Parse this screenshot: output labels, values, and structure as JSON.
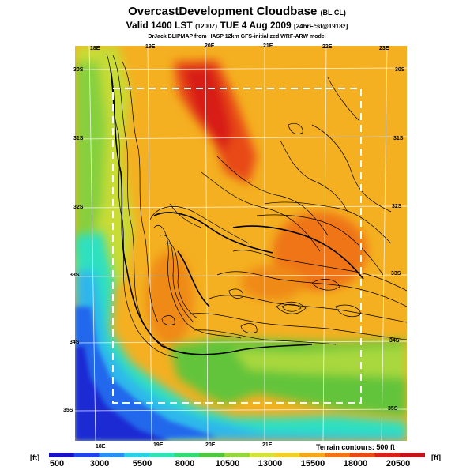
{
  "title": {
    "main": "OvercastDevelopment Cloudbase",
    "main_suffix": "(BL CL)",
    "valid": "Valid 1400 LST",
    "valid_z": "(1200Z)",
    "valid_date": "TUE 4 Aug 2009",
    "valid_fcst": "[24hrFcst@1918z]",
    "credit": "DrJack BLIPMAP from HASP 12km GFS-initialized WRF-ARW model"
  },
  "map_labels": {
    "top_lon": [
      "18E",
      "19E",
      "20E",
      "21E",
      "22E",
      "23E"
    ],
    "bottom_lon": [
      "18E",
      "19E",
      "20E",
      "21E"
    ],
    "left_lat": [
      "30S",
      "31S",
      "32S",
      "33S",
      "34S",
      "35S"
    ],
    "right_lat": [
      "30S",
      "31S",
      "32S",
      "33S",
      "34S",
      "35S"
    ]
  },
  "legend": {
    "unit_left": "[ft]",
    "unit_right": "[ft]",
    "terrain_note": "Terrain contours: 500 ft",
    "labels": [
      "500",
      "3000",
      "5500",
      "8000",
      "10500",
      "13000",
      "15500",
      "18000",
      "20500"
    ],
    "colors": [
      "#1a10c8",
      "#1f46ec",
      "#2a8ff2",
      "#2ad0e6",
      "#2fe3b4",
      "#35d977",
      "#4dc83c",
      "#95d63e",
      "#d4e33c",
      "#f2d028",
      "#f6a61c",
      "#ef7516",
      "#e84a16",
      "#d82218",
      "#c4121c"
    ]
  },
  "colors": {
    "ocean": "#1a3fe0",
    "coast": "#2fd9cc",
    "low": "#4dc83c",
    "mid": "#f2a41f",
    "high": "#d8201a",
    "domain_box": "#ffffff"
  }
}
